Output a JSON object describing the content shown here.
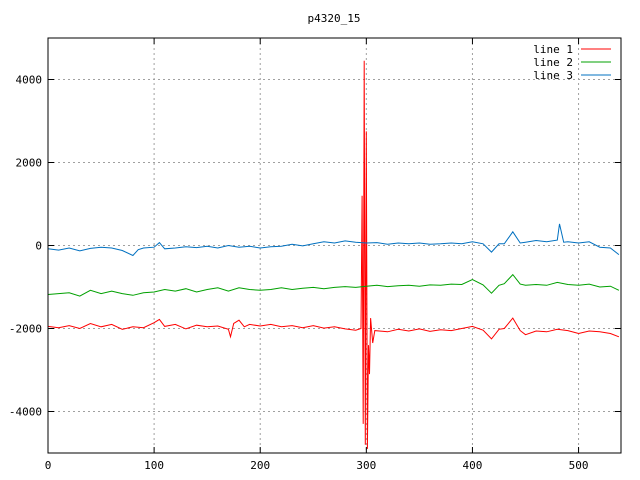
{
  "chart_data": {
    "type": "line",
    "title": "p4320_15",
    "xlabel": "",
    "ylabel": "",
    "xlim": [
      0,
      540
    ],
    "ylim": [
      -5000,
      5000
    ],
    "xticks": [
      0,
      100,
      200,
      300,
      400,
      500
    ],
    "yticks": [
      -4000,
      -2000,
      0,
      2000,
      4000
    ],
    "grid": true,
    "legend_position": "top-right",
    "series": [
      {
        "name": "line 1",
        "color": "#ff0000",
        "points": [
          [
            0,
            -1950
          ],
          [
            10,
            -1980
          ],
          [
            20,
            -1930
          ],
          [
            30,
            -2000
          ],
          [
            40,
            -1880
          ],
          [
            50,
            -1960
          ],
          [
            60,
            -1900
          ],
          [
            70,
            -2020
          ],
          [
            80,
            -1960
          ],
          [
            90,
            -1980
          ],
          [
            100,
            -1860
          ],
          [
            105,
            -1780
          ],
          [
            110,
            -1950
          ],
          [
            120,
            -1900
          ],
          [
            130,
            -2010
          ],
          [
            140,
            -1920
          ],
          [
            150,
            -1960
          ],
          [
            160,
            -1940
          ],
          [
            170,
            -2020
          ],
          [
            172,
            -2200
          ],
          [
            175,
            -1880
          ],
          [
            180,
            -1800
          ],
          [
            185,
            -1960
          ],
          [
            190,
            -1900
          ],
          [
            200,
            -1940
          ],
          [
            210,
            -1900
          ],
          [
            220,
            -1960
          ],
          [
            230,
            -1930
          ],
          [
            240,
            -1980
          ],
          [
            250,
            -1930
          ],
          [
            260,
            -1990
          ],
          [
            270,
            -1960
          ],
          [
            280,
            -2010
          ],
          [
            290,
            -2040
          ],
          [
            295,
            -2000
          ],
          [
            296,
            1200
          ],
          [
            297,
            -4300
          ],
          [
            298,
            4450
          ],
          [
            299,
            -4800
          ],
          [
            300,
            2750
          ],
          [
            301,
            -4900
          ],
          [
            302,
            -2400
          ],
          [
            303,
            -3100
          ],
          [
            304,
            -1750
          ],
          [
            306,
            -2350
          ],
          [
            308,
            -2050
          ],
          [
            320,
            -2080
          ],
          [
            330,
            -2020
          ],
          [
            340,
            -2060
          ],
          [
            350,
            -2010
          ],
          [
            360,
            -2070
          ],
          [
            370,
            -2030
          ],
          [
            380,
            -2050
          ],
          [
            390,
            -2000
          ],
          [
            400,
            -1950
          ],
          [
            410,
            -2040
          ],
          [
            418,
            -2250
          ],
          [
            425,
            -2020
          ],
          [
            430,
            -2000
          ],
          [
            438,
            -1750
          ],
          [
            445,
            -2050
          ],
          [
            450,
            -2150
          ],
          [
            460,
            -2060
          ],
          [
            470,
            -2080
          ],
          [
            480,
            -2020
          ],
          [
            490,
            -2050
          ],
          [
            500,
            -2120
          ],
          [
            510,
            -2060
          ],
          [
            520,
            -2080
          ],
          [
            530,
            -2120
          ],
          [
            538,
            -2200
          ]
        ]
      },
      {
        "name": "line 2",
        "color": "#00a000",
        "points": [
          [
            0,
            -1180
          ],
          [
            10,
            -1160
          ],
          [
            20,
            -1140
          ],
          [
            30,
            -1220
          ],
          [
            40,
            -1080
          ],
          [
            50,
            -1160
          ],
          [
            60,
            -1100
          ],
          [
            70,
            -1160
          ],
          [
            80,
            -1200
          ],
          [
            90,
            -1140
          ],
          [
            100,
            -1120
          ],
          [
            110,
            -1060
          ],
          [
            120,
            -1100
          ],
          [
            130,
            -1040
          ],
          [
            140,
            -1120
          ],
          [
            150,
            -1060
          ],
          [
            160,
            -1020
          ],
          [
            170,
            -1100
          ],
          [
            180,
            -1020
          ],
          [
            190,
            -1060
          ],
          [
            200,
            -1080
          ],
          [
            210,
            -1060
          ],
          [
            220,
            -1020
          ],
          [
            230,
            -1060
          ],
          [
            240,
            -1030
          ],
          [
            250,
            -1010
          ],
          [
            260,
            -1040
          ],
          [
            270,
            -1010
          ],
          [
            280,
            -990
          ],
          [
            290,
            -1010
          ],
          [
            300,
            -980
          ],
          [
            310,
            -960
          ],
          [
            320,
            -990
          ],
          [
            330,
            -970
          ],
          [
            340,
            -960
          ],
          [
            350,
            -980
          ],
          [
            360,
            -950
          ],
          [
            370,
            -960
          ],
          [
            380,
            -930
          ],
          [
            390,
            -940
          ],
          [
            400,
            -820
          ],
          [
            410,
            -950
          ],
          [
            418,
            -1150
          ],
          [
            425,
            -960
          ],
          [
            430,
            -920
          ],
          [
            438,
            -700
          ],
          [
            445,
            -930
          ],
          [
            450,
            -960
          ],
          [
            460,
            -940
          ],
          [
            470,
            -960
          ],
          [
            480,
            -890
          ],
          [
            490,
            -940
          ],
          [
            500,
            -960
          ],
          [
            510,
            -930
          ],
          [
            520,
            -1000
          ],
          [
            530,
            -980
          ],
          [
            538,
            -1080
          ]
        ]
      },
      {
        "name": "line 3",
        "color": "#0070c0",
        "points": [
          [
            0,
            -80
          ],
          [
            10,
            -110
          ],
          [
            20,
            -60
          ],
          [
            30,
            -130
          ],
          [
            40,
            -70
          ],
          [
            50,
            -40
          ],
          [
            60,
            -60
          ],
          [
            70,
            -120
          ],
          [
            80,
            -240
          ],
          [
            85,
            -100
          ],
          [
            90,
            -60
          ],
          [
            100,
            -40
          ],
          [
            105,
            70
          ],
          [
            110,
            -80
          ],
          [
            120,
            -60
          ],
          [
            130,
            -30
          ],
          [
            140,
            -50
          ],
          [
            150,
            -20
          ],
          [
            160,
            -60
          ],
          [
            170,
            0
          ],
          [
            180,
            -40
          ],
          [
            190,
            -20
          ],
          [
            200,
            -60
          ],
          [
            210,
            -30
          ],
          [
            220,
            -20
          ],
          [
            230,
            30
          ],
          [
            240,
            -10
          ],
          [
            250,
            40
          ],
          [
            260,
            90
          ],
          [
            270,
            60
          ],
          [
            280,
            110
          ],
          [
            290,
            80
          ],
          [
            300,
            60
          ],
          [
            310,
            70
          ],
          [
            320,
            30
          ],
          [
            330,
            60
          ],
          [
            340,
            40
          ],
          [
            350,
            60
          ],
          [
            360,
            30
          ],
          [
            370,
            40
          ],
          [
            380,
            60
          ],
          [
            390,
            40
          ],
          [
            400,
            90
          ],
          [
            410,
            40
          ],
          [
            418,
            -160
          ],
          [
            425,
            40
          ],
          [
            430,
            40
          ],
          [
            438,
            330
          ],
          [
            445,
            60
          ],
          [
            450,
            80
          ],
          [
            460,
            120
          ],
          [
            470,
            90
          ],
          [
            480,
            130
          ],
          [
            482,
            520
          ],
          [
            486,
            80
          ],
          [
            490,
            90
          ],
          [
            500,
            60
          ],
          [
            510,
            90
          ],
          [
            520,
            -40
          ],
          [
            530,
            -60
          ],
          [
            538,
            -220
          ]
        ]
      }
    ]
  }
}
